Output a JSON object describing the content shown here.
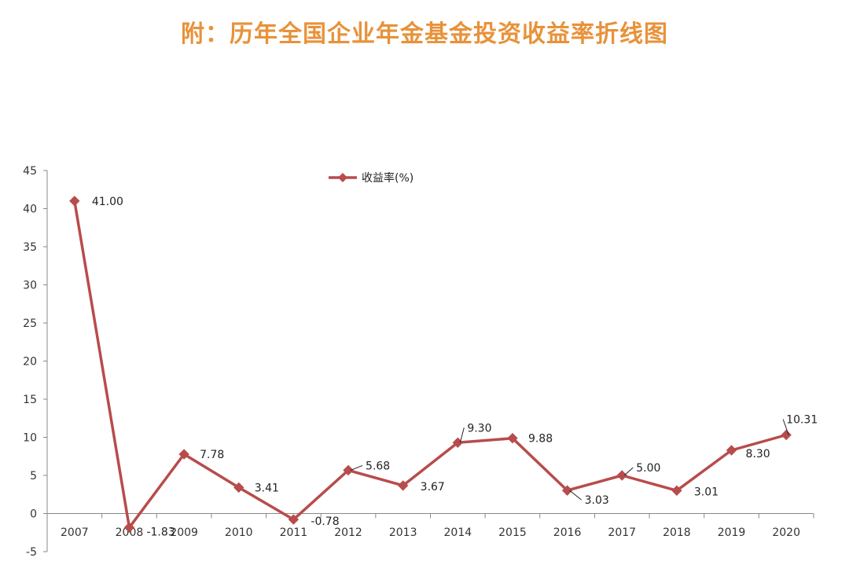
{
  "page": {
    "title": "附：历年全国企业年金基金投资收益率折线图"
  },
  "colors": {
    "title": "#E8923A",
    "series": "#B84C4C",
    "axis": "#888888"
  },
  "chart_data": {
    "type": "line",
    "title": "附：历年全国企业年金基金投资收益率折线图",
    "xlabel": "",
    "ylabel": "",
    "categories": [
      "2007",
      "2008",
      "2009",
      "2010",
      "2011",
      "2012",
      "2013",
      "2014",
      "2015",
      "2016",
      "2017",
      "2018",
      "2019",
      "2020"
    ],
    "series": [
      {
        "name": "收益率(%)",
        "values": [
          41.0,
          -1.83,
          7.78,
          3.41,
          -0.78,
          5.68,
          3.67,
          9.3,
          9.88,
          3.03,
          5.0,
          3.01,
          8.3,
          10.31
        ],
        "labels": [
          "41.00",
          "-1.83",
          "7.78",
          "3.41",
          "-0.78",
          "5.68",
          "3.67",
          "9.30",
          "9.88",
          "3.03",
          "5.00",
          "3.01",
          "8.30",
          "10.31"
        ]
      }
    ],
    "ylim": [
      -5,
      45
    ],
    "yticks": [
      -5,
      0,
      5,
      10,
      15,
      20,
      25,
      30,
      35,
      40,
      45
    ],
    "grid": false,
    "legend": "top-center",
    "marker": "diamond"
  }
}
